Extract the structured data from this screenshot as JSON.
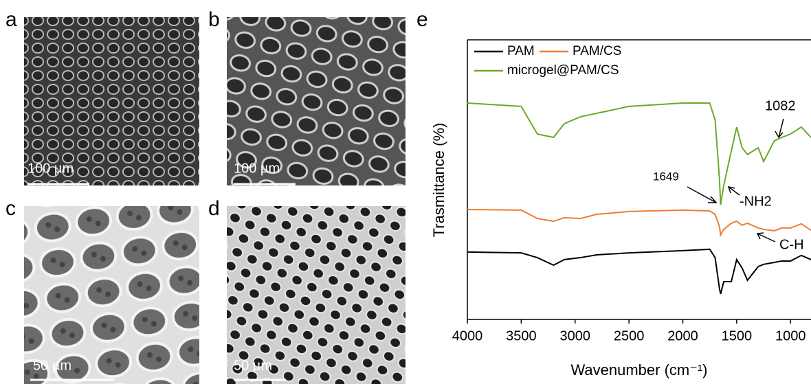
{
  "panels": [
    {
      "label": "a",
      "scale_bar": "100 µm"
    },
    {
      "label": "b",
      "scale_bar": "100 µm"
    },
    {
      "label": "c",
      "scale_bar": "50 µm"
    },
    {
      "label": "d",
      "scale_bar": "50 µm"
    }
  ],
  "chart_data": {
    "type": "line",
    "panel_label": "e",
    "x_label": "Wavenumber (cm⁻¹)",
    "y_label": "Trasmittance (%)",
    "x": [
      4000,
      3500,
      3350,
      3200,
      3100,
      2950,
      2800,
      2500,
      2000,
      1750,
      1700,
      1660,
      1649,
      1620,
      1550,
      1500,
      1450,
      1400,
      1300,
      1250,
      1150,
      1082,
      1000,
      900,
      810
    ],
    "series": [
      {
        "name": "PAM",
        "color": "#000000",
        "values": [
          24.1,
          23.8,
          22.1,
          19.4,
          21.4,
          22.1,
          23.1,
          23.8,
          24.6,
          25.1,
          22.1,
          11.1,
          9.1,
          13.5,
          13.5,
          21.4,
          18.4,
          14.0,
          18.9,
          19.7,
          20.4,
          20.9,
          20.9,
          22.9,
          21.4
        ]
      },
      {
        "name": "PAM/CS",
        "color": "#ed7d31",
        "values": [
          39.3,
          39.1,
          36.1,
          35.1,
          36.4,
          36.1,
          37.6,
          38.6,
          39.1,
          38.8,
          37.6,
          33.2,
          30.2,
          32.2,
          34.4,
          35.1,
          33.7,
          34.4,
          32.7,
          32.2,
          31.7,
          32.7,
          32.7,
          34.2,
          31.9
        ]
      },
      {
        "name": "microgel@PAM/CS",
        "color": "#6aaa2a",
        "values": [
          77.4,
          76.2,
          66.3,
          65.1,
          70.0,
          72.5,
          73.7,
          76.2,
          77.4,
          77.4,
          71.3,
          50.4,
          41.0,
          47.9,
          60.2,
          68.8,
          61.4,
          59.0,
          61.4,
          56.5,
          63.9,
          65.1,
          66.3,
          68.8,
          65.1
        ]
      }
    ],
    "xlim": [
      4000,
      810
    ],
    "ylim": [
      0,
      100
    ],
    "xticks": [
      4000,
      3500,
      3000,
      2500,
      2000,
      1500,
      1000
    ],
    "annotations": [
      "1649",
      "-NH2",
      "1082",
      "C-H"
    ]
  }
}
